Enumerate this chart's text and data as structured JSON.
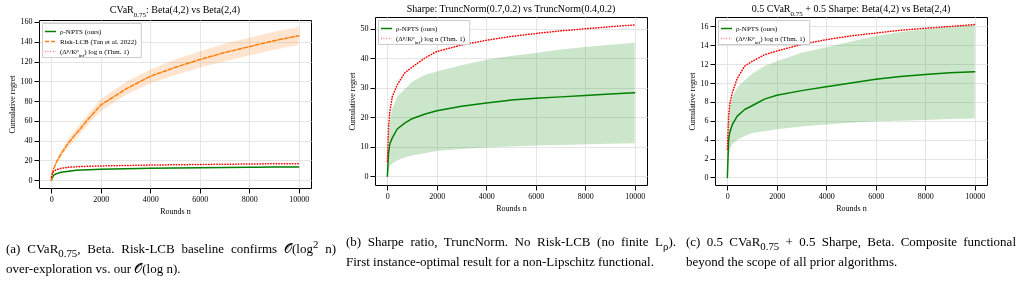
{
  "chart_data": [
    {
      "type": "line",
      "title": "CVaR$_{0.75}$: Beta(4,2) vs Beta(2,4)",
      "xlabel": "Rounds n",
      "ylabel": "Cumulative regret",
      "x": [
        0,
        50,
        100,
        200,
        400,
        700,
        1000,
        1500,
        2000,
        3000,
        4000,
        5000,
        6000,
        7000,
        8000,
        9000,
        10000
      ],
      "series": [
        {
          "name": "ρ-NPTS (ours)",
          "color": "#008000",
          "line_style": "solid",
          "values": [
            0,
            3,
            5,
            6.5,
            8,
            9,
            10,
            10.5,
            11,
            11.5,
            12,
            12.3,
            12.5,
            12.8,
            13,
            13.2,
            13.3
          ]
        },
        {
          "name": "Risk-LCB (Tan et al. 2022)",
          "color": "#ff7f0e",
          "line_style": "dashed",
          "values": [
            0,
            8,
            12,
            18,
            27,
            38,
            47,
            62,
            76,
            92,
            105,
            114,
            122,
            129,
            135,
            141,
            146
          ],
          "lower": [
            0,
            7,
            11,
            16,
            24,
            34,
            42,
            57,
            70,
            86,
            98,
            106,
            114,
            120,
            126,
            132,
            137
          ],
          "upper": [
            0,
            9,
            13,
            20,
            30,
            42,
            52,
            67,
            82,
            99,
            112,
            122,
            130,
            138,
            144,
            150,
            155
          ]
        },
        {
          "name": "(Δ$^{ρ}$/K$^{ρ}$$_{inf}$) log n (Thm. 1)",
          "color": "#ff0000",
          "line_style": "dotted",
          "values": [
            3,
            7,
            9,
            10.5,
            12,
            13,
            13.5,
            14,
            14.3,
            14.8,
            15.2,
            15.5,
            15.8,
            16,
            16.3,
            16.5,
            16.6
          ]
        }
      ],
      "xlim": [
        -500,
        10500
      ],
      "xticks": [
        0,
        2000,
        4000,
        6000,
        8000,
        10000
      ],
      "ylim": [
        -8,
        162
      ],
      "yticks": [
        0,
        20,
        40,
        60,
        80,
        100,
        120,
        140,
        160
      ],
      "grid": true,
      "legend": "top left",
      "annotations": [
        "(a) CVaR$_{0.75}$, Beta. Risk-LCB baseline confirms 𝒪(log$^{2}$ n) over-exploration vs. our 𝒪(log n)."
      ]
    },
    {
      "type": "line",
      "title": "Sharpe: TruncNorm(0.7,0.2) vs TruncNorm(0.4,0.2)",
      "xlabel": "Rounds n",
      "ylabel": "Cumulative regret",
      "x": [
        0,
        50,
        100,
        200,
        400,
        700,
        1000,
        1500,
        2000,
        3000,
        4000,
        5000,
        6000,
        7000,
        8000,
        9000,
        10000
      ],
      "series": [
        {
          "name": "ρ-NPTS (ours)",
          "color": "#008000",
          "line_style": "solid",
          "values": [
            0,
            8,
            11,
            13,
            16,
            18,
            19.5,
            21,
            22.2,
            23.7,
            24.8,
            25.8,
            26.4,
            26.9,
            27.4,
            27.9,
            28.3
          ],
          "lower": [
            0,
            2,
            3.5,
            4.3,
            5.3,
            6.3,
            7,
            7.8,
            8.5,
            9.2,
            9.7,
            10.1,
            10.4,
            10.6,
            10.8,
            11,
            11.2
          ],
          "upper": [
            0,
            15,
            19,
            23,
            27,
            29.5,
            32,
            34.3,
            35.5,
            37.6,
            39.5,
            40.8,
            41.8,
            43,
            43.8,
            44.6,
            45.3
          ]
        },
        {
          "name": "(Δ$^{ρ}$/K$^{ρ}$$_{inf}$) log n (Thm. 1)",
          "color": "#ff0000",
          "line_style": "dotted",
          "values": [
            5,
            17,
            22,
            27,
            31,
            35,
            37,
            40,
            42.3,
            44.5,
            46.1,
            47.4,
            48.4,
            49.3,
            50,
            50.7,
            51.3
          ]
        }
      ],
      "xlim": [
        -500,
        10500
      ],
      "xticks": [
        0,
        2000,
        4000,
        6000,
        8000,
        10000
      ],
      "ylim": [
        -3,
        54
      ],
      "yticks": [
        0,
        10,
        20,
        30,
        40,
        50
      ],
      "grid": true,
      "legend": "top left",
      "annotations": [
        "(b) Sharpe ratio, TruncNorm. No Risk-LCB (no finite L$_{ρ}$). First instance-optimal result for a non-Lipschitz functional."
      ]
    },
    {
      "type": "line",
      "title": "0.5 CVaR$_{0.75}$ + 0.5 Sharpe: Beta(4,2) vs Beta(2,4)",
      "xlabel": "Rounds n",
      "ylabel": "Cumulative regret",
      "x": [
        0,
        50,
        100,
        200,
        400,
        700,
        1000,
        1500,
        2000,
        3000,
        4000,
        5000,
        6000,
        7000,
        8000,
        9000,
        10000
      ],
      "series": [
        {
          "name": "ρ-NPTS (ours)",
          "color": "#008000",
          "line_style": "solid",
          "values": [
            0,
            4,
            4.8,
            5.6,
            6.5,
            7.2,
            7.6,
            8.3,
            8.7,
            9.2,
            9.6,
            10,
            10.4,
            10.7,
            10.9,
            11.1,
            11.2
          ],
          "lower": [
            0,
            2.3,
            3,
            3.5,
            4,
            4.4,
            4.7,
            4.9,
            5.1,
            5.4,
            5.6,
            5.8,
            5.95,
            6,
            6.1,
            6.2,
            6.25
          ],
          "upper": [
            0,
            6.5,
            7.5,
            8.5,
            9.5,
            10.3,
            11,
            11.8,
            12.3,
            13.2,
            13.8,
            14.4,
            15,
            15.4,
            15.7,
            16,
            16.2
          ]
        },
        {
          "name": "(Δ$^{ρ}$/K$^{ρ}$$_{inf}$) log n (Thm. 1)",
          "color": "#ff0000",
          "line_style": "dotted",
          "values": [
            3,
            6.5,
            7.8,
            9,
            10.5,
            11.8,
            12.3,
            13,
            13.4,
            14.1,
            14.6,
            15,
            15.3,
            15.6,
            15.8,
            16,
            16.2
          ]
        }
      ],
      "xlim": [
        -500,
        10500
      ],
      "xticks": [
        0,
        2000,
        4000,
        6000,
        8000,
        10000
      ],
      "ylim": [
        -0.8,
        17
      ],
      "yticks": [
        0,
        2,
        4,
        6,
        8,
        10,
        12,
        14,
        16
      ],
      "grid": true,
      "legend": "top left",
      "annotations": [
        "(c) 0.5 CVaR$_{0.75}$ + 0.5 Sharpe, Beta. Composite functional beyond the scope of all prior algorithms."
      ]
    }
  ]
}
